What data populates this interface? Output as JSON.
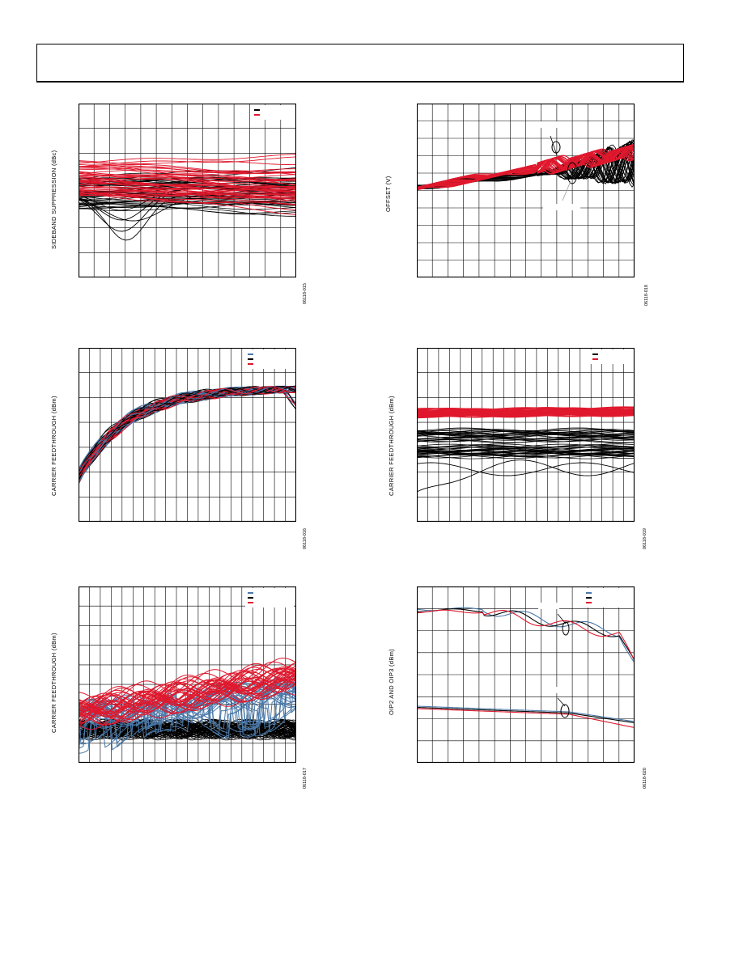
{
  "header": {
    "title": ""
  },
  "colors": {
    "black": "#000000",
    "red": "#e0182d",
    "blue": "#4a78a8",
    "grid": "#000000"
  },
  "figures": [
    {
      "id": "fig15",
      "ylabel": "SIDEBAND SUPPRESSION (dBc)",
      "fig_code": "06118-015",
      "legend": [
        {
          "color": "#000000",
          "label": ""
        },
        {
          "color": "#e0182d",
          "label": ""
        }
      ]
    },
    {
      "id": "fig18",
      "ylabel": "OFFSET (V)",
      "fig_code": "06118-018",
      "legend": []
    },
    {
      "id": "fig16",
      "ylabel": "CARRIER FEEDTHROUGH (dBm)",
      "fig_code": "06118-016",
      "legend": [
        {
          "color": "#4a78a8",
          "label": ""
        },
        {
          "color": "#000000",
          "label": ""
        },
        {
          "color": "#e0182d",
          "label": ""
        }
      ]
    },
    {
      "id": "fig19",
      "ylabel": "CARRIER FEEDTHROUGH (dBm)",
      "fig_code": "06118-019",
      "legend": [
        {
          "color": "#000000",
          "label": ""
        },
        {
          "color": "#e0182d",
          "label": ""
        }
      ]
    },
    {
      "id": "fig17",
      "ylabel": "CARRIER FEEDTHROUGH (dBm)",
      "fig_code": "06118-017",
      "legend": [
        {
          "color": "#4a78a8",
          "label": ""
        },
        {
          "color": "#000000",
          "label": ""
        },
        {
          "color": "#e0182d",
          "label": ""
        }
      ]
    },
    {
      "id": "fig20",
      "ylabel": "OIP2 AND OIP3 (dBm)",
      "fig_code": "06118-020",
      "legend": [
        {
          "color": "#4a78a8",
          "label": ""
        },
        {
          "color": "#000000",
          "label": ""
        },
        {
          "color": "#e0182d",
          "label": ""
        }
      ]
    }
  ]
}
